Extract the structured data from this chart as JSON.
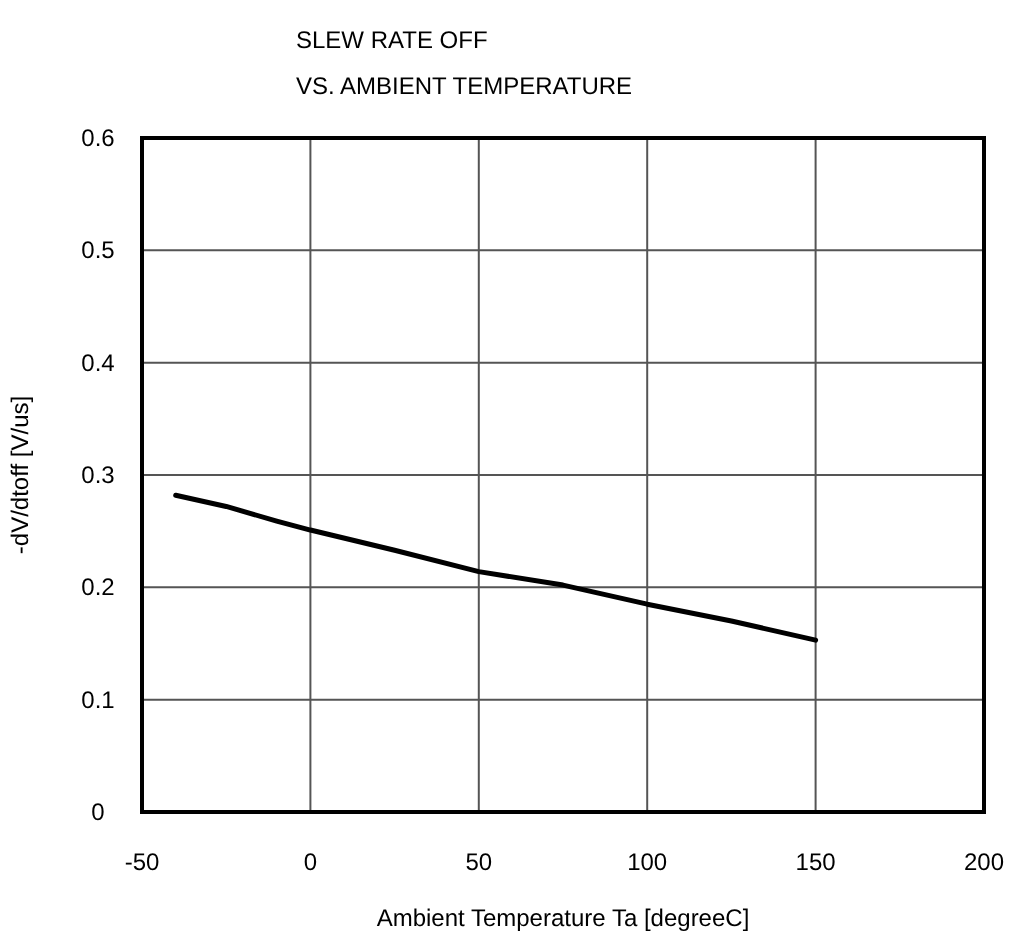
{
  "chart_data": {
    "type": "line",
    "title": "SLEW RATE OFF",
    "subtitle": "VS. AMBIENT TEMPERATURE",
    "xlabel": "Ambient Temperature  Ta [degreeC]",
    "ylabel": "-dV/dtoff [V/us]",
    "x": [
      -40,
      -25,
      -10,
      0,
      25,
      50,
      75,
      100,
      125,
      150
    ],
    "series": [
      {
        "color": "#000000",
        "values": [
          0.282,
          0.272,
          0.259,
          0.251,
          0.233,
          0.214,
          0.202,
          0.185,
          0.17,
          0.153
        ]
      }
    ],
    "xlim": [
      -50,
      200
    ],
    "xticks": [
      -50,
      0,
      50,
      100,
      150,
      200
    ],
    "ylim": [
      0,
      0.6
    ],
    "yticks": [
      0,
      0.1,
      0.2,
      0.3,
      0.4,
      0.5,
      0.6
    ],
    "grid": true,
    "marker": "none",
    "line_style": "solid"
  }
}
